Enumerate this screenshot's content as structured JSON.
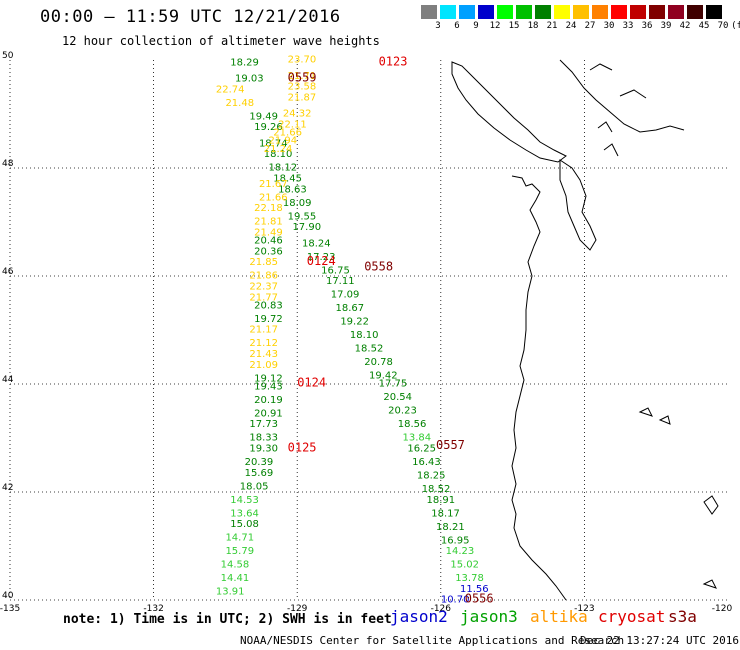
{
  "title": "00:00 – 11:59 UTC 12/21/2016",
  "subtitle": "12 hour collection of altimeter wave heights",
  "colorbar": {
    "labels": [
      "3",
      "6",
      "9",
      "12",
      "15",
      "18",
      "21",
      "24",
      "27",
      "30",
      "33",
      "36",
      "39",
      "42",
      "45",
      "70",
      "(ft)"
    ],
    "colors": [
      "#7f7f7f",
      "#00e5ff",
      "#00a0ff",
      "#0000cc",
      "#00ff00",
      "#00c000",
      "#008000",
      "#ffff00",
      "#ffc000",
      "#ff8000",
      "#ff0000",
      "#c00000",
      "#800000",
      "#900020",
      "#400000",
      "#000000"
    ]
  },
  "axes": {
    "lon_labels": [
      "-135",
      "-132",
      "-129",
      "-126",
      "-123",
      "-120"
    ],
    "lat_labels": [
      "50",
      "48",
      "46",
      "44",
      "42",
      "40"
    ]
  },
  "pass_labels": [
    {
      "text": "0123",
      "color": "#e00000",
      "lon": -127.3,
      "lat": 49.9
    },
    {
      "text": "0559",
      "color": "#800000",
      "lon": -129.2,
      "lat": 49.6
    },
    {
      "text": "0124",
      "color": "#e00000",
      "lon": -128.8,
      "lat": 46.2
    },
    {
      "text": "0558",
      "color": "#800000",
      "lon": -127.6,
      "lat": 46.1
    },
    {
      "text": "0124",
      "color": "#e00000",
      "lon": -129.0,
      "lat": 43.95
    },
    {
      "text": "0125",
      "color": "#e00000",
      "lon": -129.2,
      "lat": 42.75
    },
    {
      "text": "0557",
      "color": "#800000",
      "lon": -126.1,
      "lat": 42.8
    },
    {
      "text": "0556",
      "color": "#800000",
      "lon": -125.5,
      "lat": 39.95
    }
  ],
  "wave_tracks": [
    {
      "name": "jason3-north",
      "color": "#008000",
      "points": [
        {
          "v": "18.29",
          "lon": -130.1,
          "lat": 49.9
        },
        {
          "v": "19.03",
          "lon": -130.0,
          "lat": 49.6
        },
        {
          "v": "19.49",
          "lon": -129.7,
          "lat": 48.9
        },
        {
          "v": "19.26",
          "lon": -129.6,
          "lat": 48.7
        },
        {
          "v": "18.74",
          "lon": -129.5,
          "lat": 48.4
        },
        {
          "v": "18.10",
          "lon": -129.4,
          "lat": 48.2
        },
        {
          "v": "18.12",
          "lon": -129.3,
          "lat": 47.95
        },
        {
          "v": "18.45",
          "lon": -129.2,
          "lat": 47.75
        },
        {
          "v": "18.63",
          "lon": -129.1,
          "lat": 47.55
        },
        {
          "v": "18.09",
          "lon": -129.0,
          "lat": 47.3
        },
        {
          "v": "19.55",
          "lon": -128.9,
          "lat": 47.05
        },
        {
          "v": "17.90",
          "lon": -128.8,
          "lat": 46.85
        },
        {
          "v": "20.46",
          "lon": -129.6,
          "lat": 46.6
        },
        {
          "v": "18.24",
          "lon": -128.6,
          "lat": 46.55
        },
        {
          "v": "20.36",
          "lon": -129.6,
          "lat": 46.4
        },
        {
          "v": "17.23",
          "lon": -128.5,
          "lat": 46.3
        },
        {
          "v": "16.75",
          "lon": -128.2,
          "lat": 46.05
        },
        {
          "v": "17.11",
          "lon": -128.1,
          "lat": 45.85
        },
        {
          "v": "17.09",
          "lon": -128.0,
          "lat": 45.6
        },
        {
          "v": "20.83",
          "lon": -129.6,
          "lat": 45.4
        },
        {
          "v": "18.67",
          "lon": -127.9,
          "lat": 45.35
        },
        {
          "v": "19.72",
          "lon": -129.6,
          "lat": 45.15
        },
        {
          "v": "19.22",
          "lon": -127.8,
          "lat": 45.1
        },
        {
          "v": "18.10",
          "lon": -127.6,
          "lat": 44.85
        },
        {
          "v": "18.52",
          "lon": -127.5,
          "lat": 44.6
        },
        {
          "v": "20.78",
          "lon": -127.3,
          "lat": 44.35
        },
        {
          "v": "19.42",
          "lon": -127.2,
          "lat": 44.1
        },
        {
          "v": "19.12",
          "lon": -129.6,
          "lat": 44.05
        },
        {
          "v": "19.43",
          "lon": -129.6,
          "lat": 43.9
        },
        {
          "v": "17.75",
          "lon": -127.0,
          "lat": 43.95
        },
        {
          "v": "20.19",
          "lon": -129.6,
          "lat": 43.65
        },
        {
          "v": "20.54",
          "lon": -126.9,
          "lat": 43.7
        },
        {
          "v": "20.91",
          "lon": -129.6,
          "lat": 43.4
        },
        {
          "v": "20.23",
          "lon": -126.8,
          "lat": 43.45
        },
        {
          "v": "17.73",
          "lon": -129.7,
          "lat": 43.2
        },
        {
          "v": "18.56",
          "lon": -126.6,
          "lat": 43.2
        },
        {
          "v": "18.33",
          "lon": -129.7,
          "lat": 42.95
        },
        {
          "v": "19.30",
          "lon": -129.7,
          "lat": 42.75
        },
        {
          "v": "16.25",
          "lon": -126.4,
          "lat": 42.75
        },
        {
          "v": "20.39",
          "lon": -129.8,
          "lat": 42.5
        },
        {
          "v": "16.43",
          "lon": -126.3,
          "lat": 42.5
        },
        {
          "v": "15.69",
          "lon": -129.8,
          "lat": 42.3
        },
        {
          "v": "18.25",
          "lon": -126.2,
          "lat": 42.25
        },
        {
          "v": "18.05",
          "lon": -129.9,
          "lat": 42.05
        },
        {
          "v": "18.52",
          "lon": -126.1,
          "lat": 42.0
        },
        {
          "v": "18.91",
          "lon": -126.0,
          "lat": 41.8
        },
        {
          "v": "18.17",
          "lon": -125.9,
          "lat": 41.55
        },
        {
          "v": "15.08",
          "lon": -130.1,
          "lat": 41.35
        },
        {
          "v": "18.21",
          "lon": -125.8,
          "lat": 41.3
        },
        {
          "v": "16.95",
          "lon": -125.7,
          "lat": 41.05
        }
      ]
    },
    {
      "name": "jason3-light",
      "color": "#33cc33",
      "points": [
        {
          "v": "13.84",
          "lon": -126.5,
          "lat": 42.95
        },
        {
          "v": "14.53",
          "lon": -130.1,
          "lat": 41.8
        },
        {
          "v": "13.64",
          "lon": -130.1,
          "lat": 41.55
        },
        {
          "v": "14.71",
          "lon": -130.2,
          "lat": 41.1
        },
        {
          "v": "15.79",
          "lon": -130.2,
          "lat": 40.85
        },
        {
          "v": "14.23",
          "lon": -125.6,
          "lat": 40.85
        },
        {
          "v": "14.58",
          "lon": -130.3,
          "lat": 40.6
        },
        {
          "v": "15.02",
          "lon": -125.5,
          "lat": 40.6
        },
        {
          "v": "14.41",
          "lon": -130.3,
          "lat": 40.35
        },
        {
          "v": "13.78",
          "lon": -125.4,
          "lat": 40.35
        },
        {
          "v": "13.91",
          "lon": -130.4,
          "lat": 40.1
        }
      ]
    },
    {
      "name": "jason2",
      "color": "#0000cc",
      "points": [
        {
          "v": "11.56",
          "lon": -125.3,
          "lat": 40.15
        },
        {
          "v": "10.70",
          "lon": -125.7,
          "lat": 39.95
        }
      ]
    },
    {
      "name": "altika",
      "color": "#ffd000",
      "points": [
        {
          "v": "23.70",
          "lon": -128.9,
          "lat": 49.95
        },
        {
          "v": "21.71",
          "lon": -128.9,
          "lat": 49.65
        },
        {
          "v": "22.74",
          "lon": -130.4,
          "lat": 49.4
        },
        {
          "v": "23.58",
          "lon": -128.9,
          "lat": 49.45
        },
        {
          "v": "21.87",
          "lon": -128.9,
          "lat": 49.25
        },
        {
          "v": "21.48",
          "lon": -130.2,
          "lat": 49.15
        },
        {
          "v": "24.32",
          "lon": -129.0,
          "lat": 48.95
        },
        {
          "v": "22.11",
          "lon": -129.1,
          "lat": 48.75
        },
        {
          "v": "21.66",
          "lon": -129.2,
          "lat": 48.6
        },
        {
          "v": "21.94",
          "lon": -129.3,
          "lat": 48.45
        },
        {
          "v": "21.24",
          "lon": -129.4,
          "lat": 48.3
        },
        {
          "v": "21.67",
          "lon": -129.5,
          "lat": 47.65
        },
        {
          "v": "21.66",
          "lon": -129.5,
          "lat": 47.4
        },
        {
          "v": "22.18",
          "lon": -129.6,
          "lat": 47.2
        },
        {
          "v": "21.81",
          "lon": -129.6,
          "lat": 46.95
        },
        {
          "v": "21.49",
          "lon": -129.6,
          "lat": 46.75
        },
        {
          "v": "21.85",
          "lon": -129.7,
          "lat": 46.2
        },
        {
          "v": "21.86",
          "lon": -129.7,
          "lat": 45.95
        },
        {
          "v": "22.37",
          "lon": -129.7,
          "lat": 45.75
        },
        {
          "v": "21.77",
          "lon": -129.7,
          "lat": 45.55
        },
        {
          "v": "21.17",
          "lon": -129.7,
          "lat": 44.95
        },
        {
          "v": "21.12",
          "lon": -129.7,
          "lat": 44.7
        },
        {
          "v": "21.43",
          "lon": -129.7,
          "lat": 44.5
        },
        {
          "v": "21.09",
          "lon": -129.7,
          "lat": 44.3
        }
      ]
    }
  ],
  "note": "note: 1) Time is in UTC; 2) SWH is in feet",
  "satellites": [
    {
      "name": "jason2",
      "color": "#0000cc"
    },
    {
      "name": "jason3",
      "color": "#00a000"
    },
    {
      "name": "altika",
      "color": "#ff9900"
    },
    {
      "name": "cryosat",
      "color": "#e00000"
    },
    {
      "name": "s3a",
      "color": "#800000"
    }
  ],
  "footer": "NOAA/NESDIS Center for Satellite Applications and Research",
  "stamp": "Dec 22 13:27:24 UTC 2016"
}
